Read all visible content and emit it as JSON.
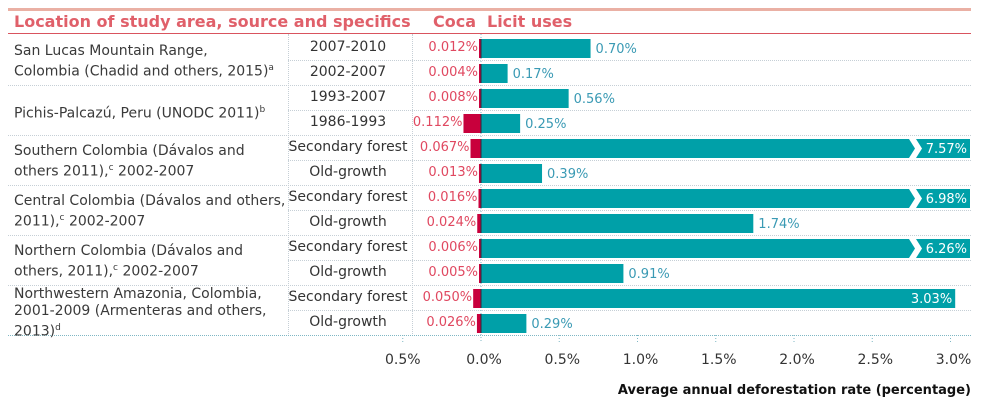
{
  "header": {
    "location_col": "Location of study area, source and specifics",
    "coca_col": "Coca",
    "licit_col": "Licit uses"
  },
  "groups": [
    {
      "location": "San Lucas Mountain Range, Colombia (Chadid and others, 2015)",
      "footnote": "a"
    },
    {
      "location": "Pichis-Palcazú, Peru (UNODC 2011)",
      "footnote": "b"
    },
    {
      "location": "Southern Colombia (Dávalos and others 2011), 2002-2007",
      "footnote": "c"
    },
    {
      "location": "Central Colombia (Dávalos and others, 2011), 2002-2007",
      "footnote": "c"
    },
    {
      "location": "Northern Colombia  (Dávalos and others, 2011), 2002-2007",
      "footnote": "c"
    },
    {
      "location": "Northwestern Amazonia, Colombia, 2001-2009 (Armenteras and others, 2013)",
      "footnote": "d"
    }
  ],
  "colors": {
    "coca": "#c8003c",
    "licit": "#00a0a8",
    "coca_text": "#e04860",
    "licit_text": "#3a9ab4",
    "header_text": "#e0606a"
  },
  "chart_data": {
    "type": "bar",
    "orientation": "horizontal-diverging",
    "title": "",
    "xlabel": "Average  annual deforestation rate  (percentage)",
    "ylabel": "",
    "xlim": [
      -0.5,
      3.0
    ],
    "x_ticks": [
      "0.5%",
      "0.0%",
      "0.5%",
      "1.0%",
      "1.5%",
      "2.0%",
      "2.5%",
      "3.0%"
    ],
    "x_tick_values": [
      -0.5,
      0.0,
      0.5,
      1.0,
      1.5,
      2.0,
      2.5,
      3.0
    ],
    "grid": true,
    "legend": "column headers (Coca left, Licit uses right)",
    "categories": [
      "2007-2010",
      "2002-2007",
      "1993-2007",
      "1986-1993",
      "Secondary forest",
      "Old-growth",
      "Secondary forest",
      "Old-growth",
      "Secondary forest",
      "Old-growth",
      "Secondary forest",
      "Old-growth"
    ],
    "group_index": [
      0,
      0,
      1,
      1,
      2,
      2,
      3,
      3,
      4,
      4,
      5,
      5
    ],
    "series": [
      {
        "name": "Coca",
        "values": [
          0.012,
          0.004,
          0.008,
          0.112,
          0.067,
          0.013,
          0.016,
          0.024,
          0.006,
          0.005,
          0.05,
          0.026
        ],
        "labels": [
          "0.012%",
          "0.004%",
          "0.008%",
          "0.112%",
          "0.067%",
          "0.013%",
          "0.016%",
          "0.024%",
          "0.006%",
          "0.005%",
          "0.050%",
          "0.026%"
        ]
      },
      {
        "name": "Licit uses",
        "values": [
          0.7,
          0.17,
          0.56,
          0.25,
          7.57,
          0.39,
          6.98,
          1.74,
          6.26,
          0.91,
          3.03,
          0.29
        ],
        "labels": [
          "0.70%",
          "0.17%",
          "0.56%",
          "0.25%",
          "7.57%",
          "0.39%",
          "6.98%",
          "1.74%",
          "6.26%",
          "0.91%",
          "3.03%",
          "0.29%"
        ],
        "truncated": [
          false,
          false,
          false,
          false,
          true,
          false,
          true,
          false,
          true,
          false,
          false,
          false
        ]
      }
    ]
  }
}
